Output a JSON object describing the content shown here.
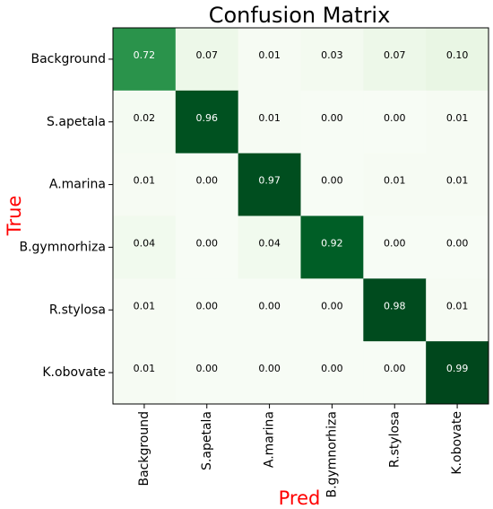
{
  "chart_data": {
    "type": "heatmap",
    "title": "Confusion Matrix",
    "xlabel": "Pred",
    "ylabel": "True",
    "x_categories": [
      "Background",
      "S.apetala",
      "A.marina",
      "B.gymnorhiza",
      "R.stylosa",
      "K.obovate"
    ],
    "y_categories": [
      "Background",
      "S.apetala",
      "A.marina",
      "B.gymnorhiza",
      "R.stylosa",
      "K.obovate"
    ],
    "values": [
      [
        0.72,
        0.07,
        0.01,
        0.03,
        0.07,
        0.1
      ],
      [
        0.02,
        0.96,
        0.01,
        0.0,
        0.0,
        0.01
      ],
      [
        0.01,
        0.0,
        0.97,
        0.0,
        0.01,
        0.01
      ],
      [
        0.04,
        0.0,
        0.04,
        0.92,
        0.0,
        0.0
      ],
      [
        0.01,
        0.0,
        0.0,
        0.0,
        0.98,
        0.01
      ],
      [
        0.01,
        0.0,
        0.0,
        0.0,
        0.0,
        0.99
      ]
    ],
    "colormap": "Greens",
    "value_range": [
      0,
      1
    ]
  }
}
